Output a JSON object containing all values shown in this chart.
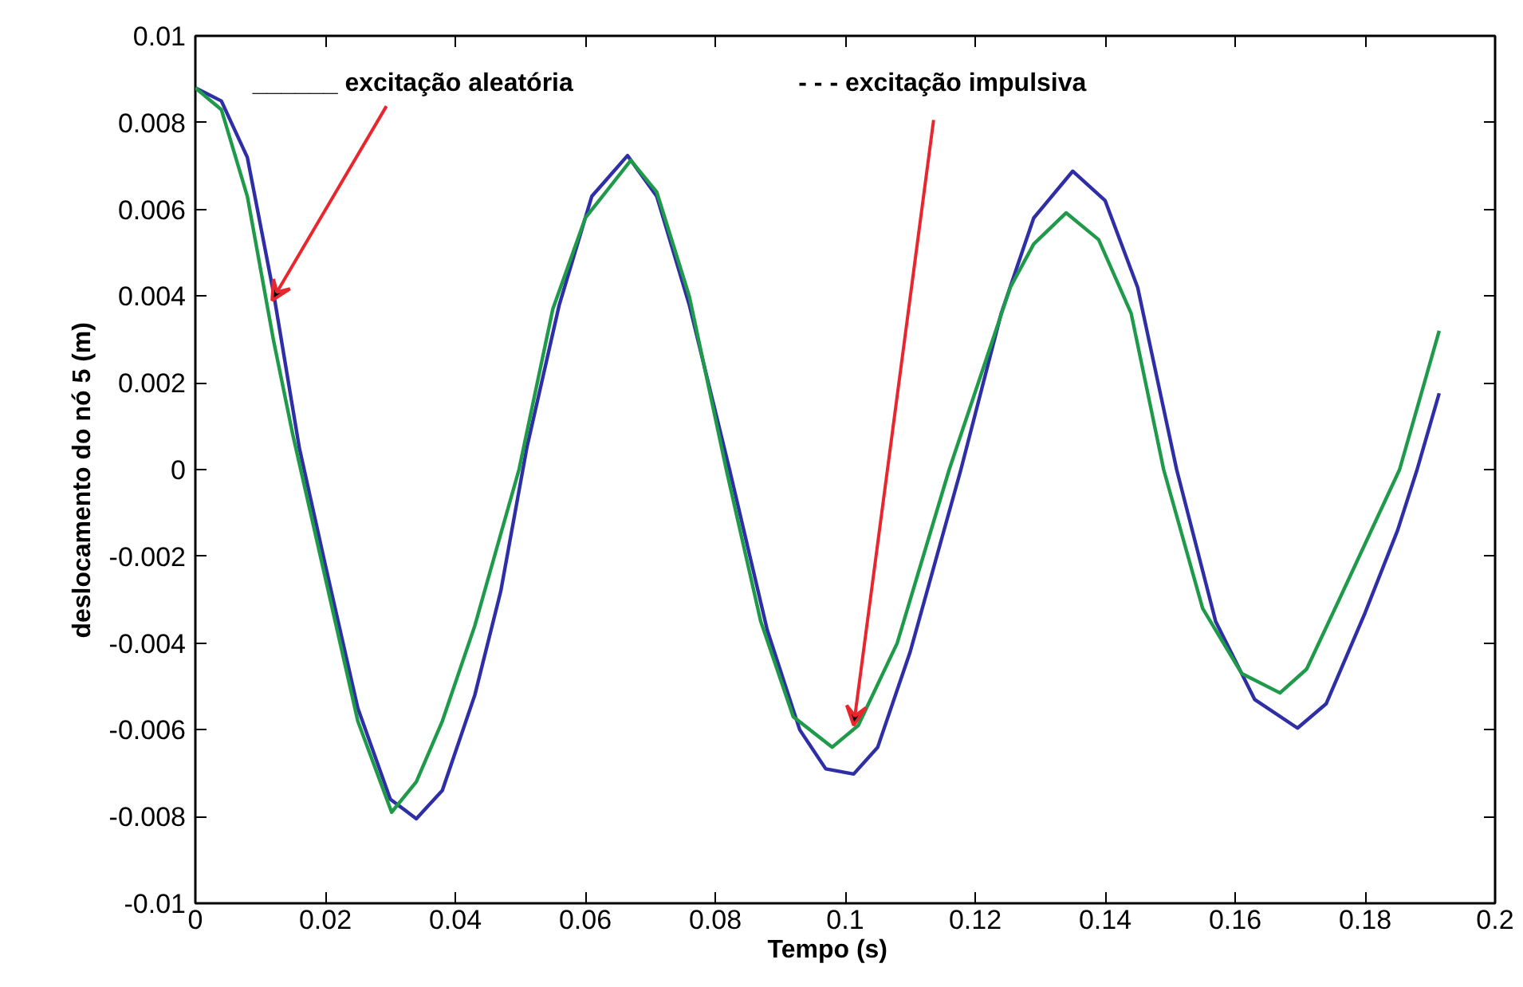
{
  "chart_data": {
    "type": "line",
    "xlabel": "Tempo      (s)",
    "ylabel": "deslocamento do nó 5    (m)",
    "xlim": [
      0,
      0.2
    ],
    "xticks": [
      0,
      0.02,
      0.04,
      0.06,
      0.08,
      0.1,
      0.12,
      0.14,
      0.16,
      0.18,
      0.2
    ],
    "ylim": [
      -0.01,
      0.01
    ],
    "yticks": [
      -0.01,
      -0.008,
      -0.006,
      -0.004,
      -0.002,
      0,
      0.002,
      0.004,
      0.006,
      0.008,
      0.01
    ],
    "grid": false,
    "line_style": "solid",
    "marker": "none",
    "annotations": [
      {
        "text": "______  excitação aleatória",
        "x": 0.0118,
        "y": 0.0039
      },
      {
        "text": "- - -  excitação impulsiva",
        "x": 0.1013,
        "y": -0.0059
      }
    ],
    "series": [
      {
        "color": "#2e2ea6",
        "x": [
          0,
          0.004,
          0.008,
          0.012,
          0.016,
          0.02,
          0.025,
          0.03,
          0.034,
          0.038,
          0.043,
          0.047,
          0.051,
          0.056,
          0.061,
          0.0665,
          0.071,
          0.076,
          0.0822,
          0.088,
          0.093,
          0.097,
          0.1013,
          0.105,
          0.11,
          0.1178,
          0.124,
          0.129,
          0.135,
          0.14,
          0.145,
          0.151,
          0.157,
          0.163,
          0.1696,
          0.174,
          0.18,
          0.185,
          0.188,
          0.1914
        ],
        "values": [
          0.0088,
          0.0085,
          0.0072,
          0.0041,
          0.0005,
          -0.0022,
          -0.0055,
          -0.0076,
          -0.00805,
          -0.0074,
          -0.0052,
          -0.0028,
          0.0005,
          0.0038,
          0.0063,
          0.00724,
          0.0063,
          0.0038,
          0.0,
          -0.0037,
          -0.006,
          -0.0069,
          -0.00702,
          -0.0064,
          -0.0042,
          0.0,
          0.0036,
          0.0058,
          0.00688,
          0.0062,
          0.0042,
          0.0,
          -0.0035,
          -0.0053,
          -0.00596,
          -0.0054,
          -0.0033,
          -0.0014,
          0.0,
          0.00176
        ]
      },
      {
        "color": "#1e9a4a",
        "x": [
          0,
          0.004,
          0.008,
          0.012,
          0.015,
          0.02,
          0.025,
          0.0302,
          0.034,
          0.038,
          0.043,
          0.0498,
          0.055,
          0.06,
          0.067,
          0.071,
          0.076,
          0.0817,
          0.087,
          0.092,
          0.098,
          0.102,
          0.108,
          0.116,
          0.1254,
          0.129,
          0.134,
          0.139,
          0.144,
          0.149,
          0.155,
          0.161,
          0.1669,
          0.171,
          0.176,
          0.1853,
          0.1914
        ],
        "values": [
          0.0088,
          0.0083,
          0.0063,
          0.003,
          0.0008,
          -0.0025,
          -0.0058,
          -0.0079,
          -0.0072,
          -0.0058,
          -0.0036,
          0.0,
          0.0037,
          0.0058,
          0.00713,
          0.0064,
          0.004,
          0.0,
          -0.0035,
          -0.0057,
          -0.0064,
          -0.0059,
          -0.004,
          0.0,
          0.0042,
          0.0052,
          0.00592,
          0.0053,
          0.0036,
          0.0,
          -0.0032,
          -0.0047,
          -0.00515,
          -0.0046,
          -0.003,
          0.0,
          0.0032
        ]
      }
    ]
  }
}
